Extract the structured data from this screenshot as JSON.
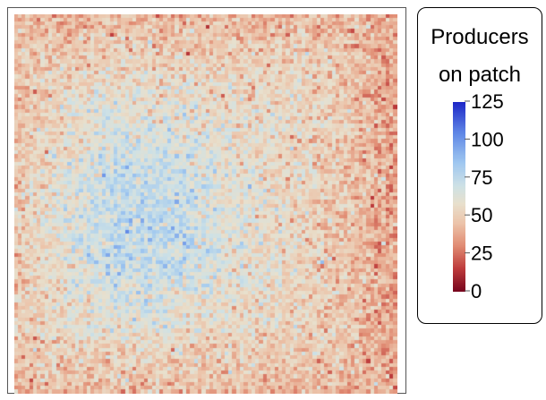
{
  "chart_data": {
    "type": "heatmap",
    "description_grid": "approximately 100 x 100 lattice of patches",
    "rows": 100,
    "cols": 100,
    "value_range": [
      0,
      125
    ],
    "mean_value": 55,
    "pattern": "higher counts (blue, ~75-110) concentrated left-of-center; lower counts (red/orange, ~25-50) toward corners, especially top-left, bottom-left and bottom-right",
    "colorbar": {
      "title_line1": "Producers",
      "title_line2": "on patch",
      "ticks": [
        "0",
        "25",
        "50",
        "75",
        "100",
        "125"
      ],
      "tick_values": [
        0,
        25,
        50,
        75,
        100,
        125
      ],
      "colormap": "coolwarm-reversed (0 = dark red, ~60 = pale beige, 125 = dark blue)"
    },
    "legend_position": "right"
  },
  "colors": {
    "low": "#8b0a1a",
    "mid_low": "#e49a7c",
    "mid": "#e9dcc3",
    "mid_high": "#a9c9ee",
    "high": "#2a3fd4"
  }
}
